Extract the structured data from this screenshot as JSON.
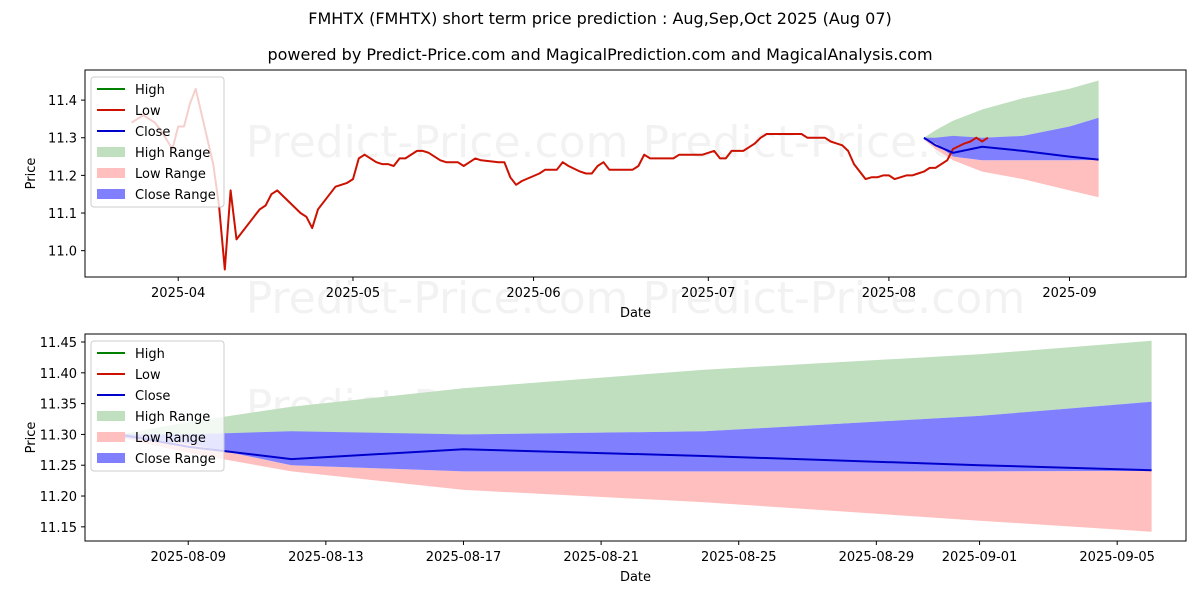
{
  "title": "FMHTX (FMHTX) short term price prediction : Aug,Sep,Oct 2025 (Aug 07)",
  "subtitle": "powered by Predict-Price.com and MagicalPrediction.com and MagicalAnalysis.com",
  "watermark": "Predict-Price.com",
  "colors": {
    "high": "#008000",
    "low": "#cc1100",
    "close": "#0000cc",
    "high_range": "#bfdfbf",
    "low_range": "#ffbfbf",
    "close_range": "#8080ff"
  },
  "legend": [
    {
      "label": "High",
      "kind": "line",
      "color": "#008000"
    },
    {
      "label": "Low",
      "kind": "line",
      "color": "#cc1100"
    },
    {
      "label": "Close",
      "kind": "line",
      "color": "#0000cc"
    },
    {
      "label": "High Range",
      "kind": "patch",
      "color": "#bfdfbf"
    },
    {
      "label": "Low Range",
      "kind": "patch",
      "color": "#ffbfbf"
    },
    {
      "label": "Close Range",
      "kind": "patch",
      "color": "#8080ff"
    }
  ],
  "chart_data": [
    {
      "type": "line",
      "xlabel": "Date",
      "ylabel": "Price",
      "xlim": [
        "2025-03-16",
        "2025-09-21"
      ],
      "ylim": [
        10.93,
        11.48
      ],
      "xticks": [
        "2025-04-01",
        "2025-05-01",
        "2025-06-01",
        "2025-07-01",
        "2025-08-01",
        "2025-09-01"
      ],
      "xtick_labels": [
        "2025-04",
        "2025-05",
        "2025-06",
        "2025-07",
        "2025-08",
        "2025-09"
      ],
      "yticks": [
        11.0,
        11.1,
        11.2,
        11.3,
        11.4
      ],
      "ytick_labels": [
        "11.0",
        "11.1",
        "11.2",
        "11.3",
        "11.4"
      ],
      "legend_position": "upper-left",
      "history_low": [
        [
          "2025-03-24",
          11.34
        ],
        [
          "2025-03-26",
          11.36
        ],
        [
          "2025-03-28",
          11.34
        ],
        [
          "2025-03-29",
          11.32
        ],
        [
          "2025-03-31",
          11.27
        ],
        [
          "2025-04-01",
          11.33
        ],
        [
          "2025-04-02",
          11.33
        ],
        [
          "2025-04-03",
          11.39
        ],
        [
          "2025-04-04",
          11.43
        ],
        [
          "2025-04-07",
          11.23
        ],
        [
          "2025-04-08",
          11.12
        ],
        [
          "2025-04-09",
          10.95
        ],
        [
          "2025-04-10",
          11.16
        ],
        [
          "2025-04-11",
          11.03
        ],
        [
          "2025-04-14",
          11.09
        ],
        [
          "2025-04-15",
          11.11
        ],
        [
          "2025-04-16",
          11.12
        ],
        [
          "2025-04-17",
          11.15
        ],
        [
          "2025-04-18",
          11.16
        ],
        [
          "2025-04-22",
          11.1
        ],
        [
          "2025-04-23",
          11.09
        ],
        [
          "2025-04-24",
          11.06
        ],
        [
          "2025-04-25",
          11.11
        ],
        [
          "2025-04-28",
          11.17
        ],
        [
          "2025-04-29",
          11.175
        ],
        [
          "2025-04-30",
          11.18
        ],
        [
          "2025-05-01",
          11.19
        ],
        [
          "2025-05-02",
          11.245
        ],
        [
          "2025-05-03",
          11.255
        ],
        [
          "2025-05-05",
          11.235
        ],
        [
          "2025-05-06",
          11.23
        ],
        [
          "2025-05-07",
          11.23
        ],
        [
          "2025-05-08",
          11.225
        ],
        [
          "2025-05-09",
          11.245
        ],
        [
          "2025-05-10",
          11.245
        ],
        [
          "2025-05-12",
          11.265
        ],
        [
          "2025-05-13",
          11.265
        ],
        [
          "2025-05-14",
          11.26
        ],
        [
          "2025-05-15",
          11.25
        ],
        [
          "2025-05-16",
          11.24
        ],
        [
          "2025-05-17",
          11.235
        ],
        [
          "2025-05-19",
          11.235
        ],
        [
          "2025-05-20",
          11.225
        ],
        [
          "2025-05-21",
          11.235
        ],
        [
          "2025-05-22",
          11.245
        ],
        [
          "2025-05-23",
          11.24
        ],
        [
          "2025-05-26",
          11.235
        ],
        [
          "2025-05-27",
          11.235
        ],
        [
          "2025-05-28",
          11.195
        ],
        [
          "2025-05-29",
          11.175
        ],
        [
          "2025-05-30",
          11.185
        ],
        [
          "2025-06-02",
          11.205
        ],
        [
          "2025-06-03",
          11.215
        ],
        [
          "2025-06-04",
          11.215
        ],
        [
          "2025-06-05",
          11.215
        ],
        [
          "2025-06-06",
          11.235
        ],
        [
          "2025-06-07",
          11.225
        ],
        [
          "2025-06-09",
          11.21
        ],
        [
          "2025-06-10",
          11.205
        ],
        [
          "2025-06-11",
          11.205
        ],
        [
          "2025-06-12",
          11.225
        ],
        [
          "2025-06-13",
          11.235
        ],
        [
          "2025-06-14",
          11.215
        ],
        [
          "2025-06-16",
          11.215
        ],
        [
          "2025-06-17",
          11.215
        ],
        [
          "2025-06-18",
          11.215
        ],
        [
          "2025-06-19",
          11.225
        ],
        [
          "2025-06-20",
          11.255
        ],
        [
          "2025-06-21",
          11.245
        ],
        [
          "2025-06-23",
          11.245
        ],
        [
          "2025-06-24",
          11.245
        ],
        [
          "2025-06-25",
          11.245
        ],
        [
          "2025-06-26",
          11.255
        ],
        [
          "2025-06-27",
          11.255
        ],
        [
          "2025-06-28",
          11.255
        ],
        [
          "2025-06-30",
          11.255
        ],
        [
          "2025-07-01",
          11.26
        ],
        [
          "2025-07-02",
          11.265
        ],
        [
          "2025-07-03",
          11.245
        ],
        [
          "2025-07-04",
          11.245
        ],
        [
          "2025-07-05",
          11.265
        ],
        [
          "2025-07-07",
          11.265
        ],
        [
          "2025-07-08",
          11.275
        ],
        [
          "2025-07-09",
          11.285
        ],
        [
          "2025-07-10",
          11.3
        ],
        [
          "2025-07-11",
          11.31
        ],
        [
          "2025-07-14",
          11.31
        ],
        [
          "2025-07-15",
          11.31
        ],
        [
          "2025-07-16",
          11.31
        ],
        [
          "2025-07-17",
          11.31
        ],
        [
          "2025-07-18",
          11.3
        ],
        [
          "2025-07-21",
          11.3
        ],
        [
          "2025-07-22",
          11.29
        ],
        [
          "2025-07-23",
          11.285
        ],
        [
          "2025-07-24",
          11.28
        ],
        [
          "2025-07-25",
          11.265
        ],
        [
          "2025-07-26",
          11.23
        ],
        [
          "2025-07-28",
          11.19
        ],
        [
          "2025-07-29",
          11.195
        ],
        [
          "2025-07-30",
          11.195
        ],
        [
          "2025-07-31",
          11.2
        ],
        [
          "2025-08-01",
          11.2
        ],
        [
          "2025-08-02",
          11.19
        ],
        [
          "2025-08-04",
          11.2
        ],
        [
          "2025-08-05",
          11.2
        ],
        [
          "2025-08-06",
          11.205
        ],
        [
          "2025-08-07",
          11.21
        ],
        [
          "2025-08-08",
          11.22
        ],
        [
          "2025-08-09",
          11.22
        ],
        [
          "2025-08-11",
          11.24
        ],
        [
          "2025-08-12",
          11.27
        ],
        [
          "2025-08-14",
          11.285
        ],
        [
          "2025-08-15",
          11.29
        ],
        [
          "2025-08-16",
          11.3
        ],
        [
          "2025-08-17",
          11.29
        ],
        [
          "2025-08-18",
          11.3
        ]
      ],
      "prediction_x": [
        "2025-08-07",
        "2025-08-09",
        "2025-08-12",
        "2025-08-17",
        "2025-08-24",
        "2025-09-01",
        "2025-09-06"
      ],
      "close": [
        11.3,
        11.28,
        11.26,
        11.276,
        11.265,
        11.25,
        11.242
      ],
      "high_range": {
        "lower": [
          11.3,
          11.295,
          11.3,
          11.3,
          11.305,
          11.33,
          11.353
        ],
        "upper": [
          11.3,
          11.32,
          11.345,
          11.375,
          11.405,
          11.43,
          11.452
        ]
      },
      "close_range": {
        "lower": [
          11.295,
          11.285,
          11.25,
          11.24,
          11.24,
          11.24,
          11.241
        ],
        "upper": [
          11.3,
          11.3,
          11.305,
          11.3,
          11.305,
          11.33,
          11.353
        ]
      },
      "low_range": {
        "lower": [
          11.295,
          11.27,
          11.24,
          11.21,
          11.19,
          11.16,
          11.142
        ],
        "upper": [
          11.295,
          11.285,
          11.25,
          11.24,
          11.24,
          11.24,
          11.241
        ]
      }
    },
    {
      "type": "line",
      "xlabel": "Date",
      "ylabel": "Price",
      "xlim": [
        "2025-08-06",
        "2025-09-07"
      ],
      "ylim": [
        11.127,
        11.463
      ],
      "xticks": [
        "2025-08-09",
        "2025-08-13",
        "2025-08-17",
        "2025-08-21",
        "2025-08-25",
        "2025-08-29",
        "2025-09-01",
        "2025-09-05"
      ],
      "xtick_labels": [
        "2025-08-09",
        "2025-08-13",
        "2025-08-17",
        "2025-08-21",
        "2025-08-25",
        "2025-08-29",
        "2025-09-01",
        "2025-09-05"
      ],
      "yticks": [
        11.15,
        11.2,
        11.25,
        11.3,
        11.35,
        11.4,
        11.45
      ],
      "ytick_labels": [
        "11.15",
        "11.20",
        "11.25",
        "11.30",
        "11.35",
        "11.40",
        "11.45"
      ],
      "legend_position": "upper-left",
      "prediction_x": [
        "2025-08-07",
        "2025-08-09",
        "2025-08-12",
        "2025-08-17",
        "2025-08-24",
        "2025-09-01",
        "2025-09-06"
      ],
      "close": [
        11.3,
        11.28,
        11.26,
        11.276,
        11.265,
        11.25,
        11.242
      ],
      "high_range": {
        "lower": [
          11.3,
          11.295,
          11.3,
          11.3,
          11.305,
          11.33,
          11.353
        ],
        "upper": [
          11.3,
          11.32,
          11.345,
          11.375,
          11.405,
          11.43,
          11.452
        ]
      },
      "close_range": {
        "lower": [
          11.295,
          11.285,
          11.25,
          11.24,
          11.24,
          11.24,
          11.241
        ],
        "upper": [
          11.3,
          11.3,
          11.305,
          11.3,
          11.305,
          11.33,
          11.353
        ]
      },
      "low_range": {
        "lower": [
          11.295,
          11.27,
          11.24,
          11.21,
          11.19,
          11.16,
          11.142
        ],
        "upper": [
          11.295,
          11.285,
          11.25,
          11.24,
          11.24,
          11.24,
          11.241
        ]
      }
    }
  ]
}
